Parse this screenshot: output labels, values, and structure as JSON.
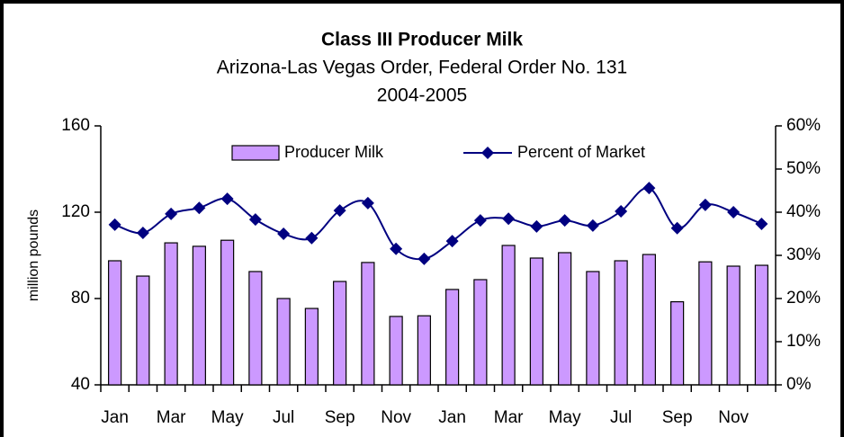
{
  "chart_data": {
    "type": "bar_line",
    "title": "Class III Producer Milk",
    "subtitle": [
      "Arizona-Las Vegas Order, Federal Order No. 131",
      "2004-2005"
    ],
    "y_label": "million pounds",
    "categories": [
      "Jan",
      null,
      "Mar",
      null,
      "May",
      null,
      "Jul",
      null,
      "Sep",
      null,
      "Nov",
      null,
      "Jan",
      null,
      "Mar",
      null,
      "May",
      null,
      "Jul",
      null,
      "Sep",
      null,
      "Nov",
      null
    ],
    "series": [
      {
        "name": "Producer Milk",
        "type": "bar",
        "color": "#cc99ff",
        "values": [
          97.5,
          90.4,
          105.8,
          104.2,
          107,
          92.5,
          80,
          75.4,
          87.9,
          96.7,
          71.7,
          72,
          84.2,
          88.75,
          104.6,
          98.75,
          101.25,
          92.5,
          97.5,
          100.4,
          78.5,
          97,
          95,
          95.4
        ]
      },
      {
        "name": "Percent of Market",
        "type": "line",
        "axis": "y2",
        "color": "#000080",
        "values": [
          37.1,
          35.2,
          39.6,
          41,
          43.1,
          38.3,
          35,
          34,
          40.4,
          42.1,
          31.5,
          29.2,
          33.3,
          38.1,
          38.5,
          36.7,
          38.1,
          36.9,
          40.2,
          45.6,
          36.3,
          41.7,
          40,
          37.3
        ]
      }
    ],
    "ylim": [
      40,
      160
    ],
    "yticks": [
      40,
      80,
      120,
      160
    ],
    "y2lim": [
      0,
      60
    ],
    "y2ticks": [
      {
        "value": 0,
        "label": "0%"
      },
      {
        "value": 10,
        "label": "10%"
      },
      {
        "value": 20,
        "label": "20%"
      },
      {
        "value": 30,
        "label": "30%"
      },
      {
        "value": 40,
        "label": "40%"
      },
      {
        "value": 50,
        "label": "50%"
      },
      {
        "value": 60,
        "label": "60%"
      }
    ],
    "grid": false,
    "legend": "top"
  }
}
